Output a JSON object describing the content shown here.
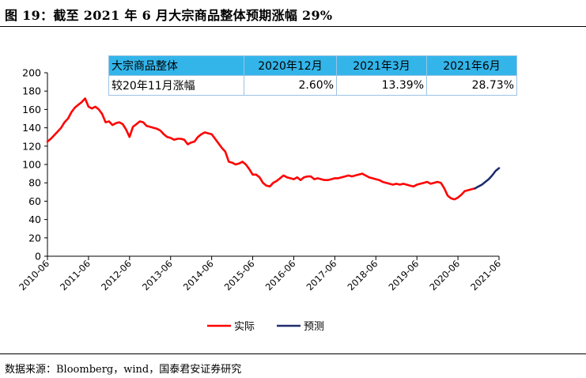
{
  "figure": {
    "title": "图 19：截至 2021 年 6 月大宗商品整体预期涨幅 29%",
    "source": "数据来源：Bloomberg，wind，国泰君安证券研究"
  },
  "table": {
    "header": [
      "大宗商品整体",
      "2020年12月",
      "2021年3月",
      "2021年6月"
    ],
    "row": [
      "较20年11月涨幅",
      "2.60%",
      "13.39%",
      "28.73%"
    ],
    "header_color": "#33b5ea"
  },
  "chart_data": {
    "type": "line",
    "x_ticks": [
      "2010-06",
      "2011-06",
      "2012-06",
      "2013-06",
      "2014-06",
      "2015-06",
      "2016-06",
      "2017-06",
      "2018-06",
      "2019-06",
      "2020-06",
      "2021-06"
    ],
    "y_ticks": [
      "0",
      "20",
      "40",
      "60",
      "80",
      "100",
      "120",
      "140",
      "160",
      "180",
      "200"
    ],
    "ylim": [
      0,
      200
    ],
    "grid": false,
    "legend_position": "bottom-center",
    "series": [
      {
        "name": "实际",
        "color": "#ff0000",
        "x": [
          "2010-06",
          "2010-07",
          "2010-08",
          "2010-09",
          "2010-10",
          "2010-11",
          "2010-12",
          "2011-01",
          "2011-02",
          "2011-03",
          "2011-04",
          "2011-05",
          "2011-06",
          "2011-07",
          "2011-08",
          "2011-09",
          "2011-10",
          "2011-11",
          "2011-12",
          "2012-01",
          "2012-02",
          "2012-03",
          "2012-04",
          "2012-05",
          "2012-06",
          "2012-07",
          "2012-08",
          "2012-09",
          "2012-10",
          "2012-11",
          "2012-12",
          "2013-01",
          "2013-02",
          "2013-03",
          "2013-04",
          "2013-05",
          "2013-06",
          "2013-07",
          "2013-08",
          "2013-09",
          "2013-10",
          "2013-11",
          "2013-12",
          "2014-01",
          "2014-02",
          "2014-03",
          "2014-04",
          "2014-05",
          "2014-06",
          "2014-07",
          "2014-08",
          "2014-09",
          "2014-10",
          "2014-11",
          "2014-12",
          "2015-01",
          "2015-02",
          "2015-03",
          "2015-04",
          "2015-05",
          "2015-06",
          "2015-07",
          "2015-08",
          "2015-09",
          "2015-10",
          "2015-11",
          "2015-12",
          "2016-01",
          "2016-02",
          "2016-03",
          "2016-04",
          "2016-05",
          "2016-06",
          "2016-07",
          "2016-08",
          "2016-09",
          "2016-10",
          "2016-11",
          "2016-12",
          "2017-01",
          "2017-02",
          "2017-03",
          "2017-04",
          "2017-05",
          "2017-06",
          "2017-07",
          "2017-08",
          "2017-09",
          "2017-10",
          "2017-11",
          "2017-12",
          "2018-01",
          "2018-02",
          "2018-03",
          "2018-04",
          "2018-05",
          "2018-06",
          "2018-07",
          "2018-08",
          "2018-09",
          "2018-10",
          "2018-11",
          "2018-12",
          "2019-01",
          "2019-02",
          "2019-03",
          "2019-04",
          "2019-05",
          "2019-06",
          "2019-07",
          "2019-08",
          "2019-09",
          "2019-10",
          "2019-11",
          "2019-12",
          "2020-01",
          "2020-02",
          "2020-03",
          "2020-04",
          "2020-05",
          "2020-06",
          "2020-07",
          "2020-08",
          "2020-09",
          "2020-10",
          "2020-11"
        ],
        "values": [
          125,
          128,
          132,
          136,
          140,
          146,
          150,
          157,
          162,
          165,
          168,
          172,
          163,
          161,
          163,
          160,
          155,
          146,
          147,
          143,
          145,
          146,
          144,
          138,
          130,
          141,
          144,
          147,
          146,
          142,
          141,
          140,
          139,
          137,
          133,
          130,
          129,
          127,
          128,
          128,
          127,
          122,
          124,
          125,
          130,
          133,
          135,
          134,
          133,
          128,
          123,
          118,
          114,
          103,
          102,
          100,
          101,
          103,
          100,
          95,
          89,
          89,
          86,
          80,
          77,
          76,
          80,
          82,
          85,
          88,
          86,
          85,
          84,
          86,
          83,
          86,
          87,
          87,
          84,
          85,
          84,
          83,
          83,
          84,
          85,
          85,
          86,
          87,
          88,
          87,
          88,
          89,
          90,
          88,
          86,
          85,
          84,
          83,
          81,
          80,
          79,
          78,
          79,
          78,
          79,
          78,
          77,
          76,
          78,
          79,
          80,
          81,
          79,
          80,
          81,
          80,
          74,
          66,
          63,
          62,
          64,
          67,
          71,
          72,
          73,
          74
        ]
      },
      {
        "name": "预测",
        "color": "#1f2d6e",
        "x": [
          "2020-11",
          "2020-12",
          "2021-01",
          "2021-02",
          "2021-03",
          "2021-04",
          "2021-05",
          "2021-06"
        ],
        "values": [
          74,
          76,
          78,
          81,
          84,
          88,
          93,
          96
        ]
      }
    ]
  }
}
